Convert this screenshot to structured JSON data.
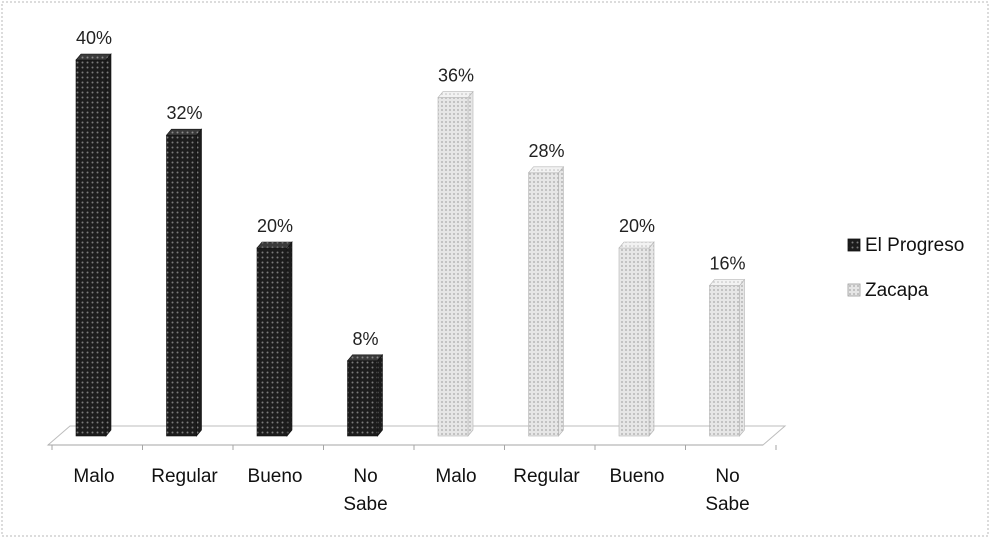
{
  "chart_data": {
    "type": "bar",
    "categories": [
      "Malo",
      "Regular",
      "Bueno",
      "No Sabe",
      "Malo",
      "Regular",
      "Bueno",
      "No Sabe"
    ],
    "tick_labels": [
      [
        "Malo"
      ],
      [
        "Regular"
      ],
      [
        "Bueno"
      ],
      [
        "No",
        "Sabe"
      ],
      [
        "Malo"
      ],
      [
        "Regular"
      ],
      [
        "Bueno"
      ],
      [
        "No",
        "Sabe"
      ]
    ],
    "series": [
      {
        "name": "El Progreso",
        "color": "#1e1e1e",
        "pattern": "dark-dotted",
        "values": [
          40,
          32,
          20,
          8,
          null,
          null,
          null,
          null
        ],
        "labels": [
          "40%",
          "32%",
          "20%",
          "8%",
          "",
          "",
          "",
          ""
        ]
      },
      {
        "name": "Zacapa",
        "color": "#dcdcdc",
        "pattern": "light-dotted",
        "values": [
          null,
          null,
          null,
          null,
          36,
          28,
          20,
          16
        ],
        "labels": [
          "",
          "",
          "",
          "",
          "36%",
          "28%",
          "20%",
          "16%"
        ]
      }
    ],
    "ylim": [
      0,
      40
    ],
    "unit": "%",
    "title": "",
    "xlabel": "",
    "ylabel": "",
    "grid": false,
    "legend_position": "right",
    "style": "3d-column"
  }
}
